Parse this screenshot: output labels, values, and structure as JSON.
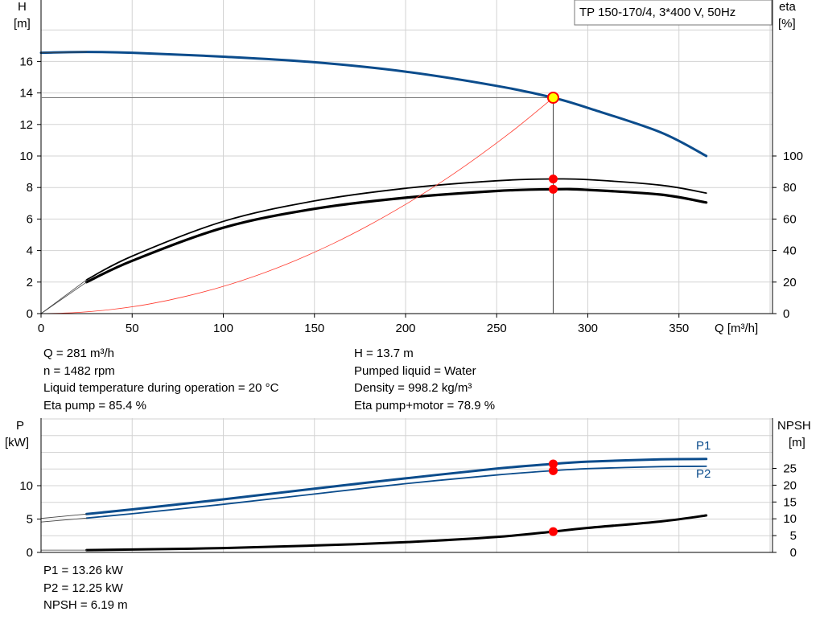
{
  "chart_data": [
    {
      "type": "line",
      "title": "TP 150-170/4, 3*400 V, 50Hz",
      "xlabel": "Q [m³/h]",
      "ylabel_left": "H",
      "ylabel_left_unit": "[m]",
      "ylabel_right": "eta",
      "ylabel_right_unit": "[%]",
      "xlim": [
        0,
        400
      ],
      "ylim_left": [
        0,
        20
      ],
      "ylim_right": [
        0,
        200
      ],
      "x_ticks": [
        0,
        50,
        100,
        150,
        200,
        250,
        300,
        350
      ],
      "y_ticks_left": [
        0,
        2,
        4,
        6,
        8,
        10,
        12,
        14,
        16
      ],
      "y_ticks_right": [
        0,
        20,
        40,
        60,
        80,
        100
      ],
      "grid": true,
      "series": [
        {
          "key": "head",
          "axis": "left",
          "color": "#0b4c8c",
          "width": 3,
          "x": [
            0,
            25,
            50,
            100,
            150,
            200,
            250,
            281,
            300,
            340,
            365
          ],
          "y": [
            16.55,
            16.6,
            16.55,
            16.3,
            15.95,
            15.35,
            14.45,
            13.7,
            13.05,
            11.5,
            10.0
          ]
        },
        {
          "key": "head-extension",
          "axis": "left",
          "color": "#444444",
          "width": 0.8,
          "x": [
            0,
            25
          ],
          "y": [
            16.55,
            16.6
          ]
        },
        {
          "key": "eta-pump",
          "axis": "right",
          "color": "#000000",
          "width": 1.8,
          "x": [
            25,
            50,
            100,
            150,
            200,
            250,
            281,
            300,
            340,
            365
          ],
          "y": [
            21.5,
            36.5,
            58.5,
            71.5,
            79.5,
            84.3,
            85.4,
            85.0,
            81.5,
            76.5
          ]
        },
        {
          "key": "eta-pump-motor",
          "axis": "right",
          "color": "#000000",
          "width": 3.2,
          "x": [
            25,
            50,
            100,
            150,
            200,
            250,
            281,
            300,
            340,
            365
          ],
          "y": [
            20.0,
            33.5,
            54.5,
            66.5,
            73.5,
            77.8,
            78.9,
            78.5,
            75.5,
            70.5
          ]
        },
        {
          "key": "eta-extension-a",
          "axis": "right",
          "color": "#444444",
          "width": 0.8,
          "x": [
            0,
            25
          ],
          "y": [
            0,
            21.5
          ]
        },
        {
          "key": "eta-extension-b",
          "axis": "right",
          "color": "#444444",
          "width": 0.8,
          "x": [
            0,
            25
          ],
          "y": [
            0,
            20.0
          ]
        },
        {
          "key": "system-curve",
          "axis": "left",
          "color": "#ff3b2f",
          "width": 0.8,
          "x": [
            0,
            20,
            40,
            60,
            80,
            100,
            120,
            140,
            160,
            180,
            200,
            220,
            240,
            260,
            281
          ],
          "y": [
            0,
            0.07,
            0.28,
            0.62,
            1.11,
            1.73,
            2.49,
            3.39,
            4.43,
            5.61,
            6.93,
            8.38,
            9.98,
            11.71,
            13.7
          ]
        }
      ],
      "operating_point": {
        "x": 281,
        "head": 13.7,
        "eta_pump": 85.4,
        "eta_pump_motor": 78.9
      }
    },
    {
      "type": "line",
      "ylabel_left": "P",
      "ylabel_left_unit": "[kW]",
      "ylabel_right": "NPSH",
      "ylabel_right_unit": "[m]",
      "xlim": [
        0,
        400
      ],
      "ylim_left": [
        0,
        15
      ],
      "ylim_right": [
        0,
        35
      ],
      "y_ticks_left": [
        0,
        5,
        10
      ],
      "y_ticks_right": [
        0,
        5,
        10,
        15,
        20,
        25
      ],
      "grid": true,
      "series": [
        {
          "key": "P1",
          "name": "P1",
          "axis": "left",
          "color": "#0b4c8c",
          "width": 3,
          "x": [
            25,
            50,
            100,
            150,
            200,
            250,
            281,
            300,
            340,
            365
          ],
          "y": [
            5.75,
            6.45,
            7.95,
            9.55,
            11.1,
            12.55,
            13.26,
            13.6,
            13.95,
            14.0
          ]
        },
        {
          "key": "P2",
          "name": "P2",
          "axis": "left",
          "color": "#0b4c8c",
          "width": 1.8,
          "x": [
            25,
            50,
            100,
            150,
            200,
            250,
            281,
            300,
            340,
            365
          ],
          "y": [
            5.15,
            5.8,
            7.2,
            8.75,
            10.3,
            11.6,
            12.25,
            12.55,
            12.85,
            12.9
          ]
        },
        {
          "key": "P1-extension",
          "axis": "left",
          "color": "#444444",
          "width": 0.8,
          "x": [
            0,
            25
          ],
          "y": [
            5.1,
            5.75
          ]
        },
        {
          "key": "P2-extension",
          "axis": "left",
          "color": "#444444",
          "width": 0.8,
          "x": [
            0,
            25
          ],
          "y": [
            4.55,
            5.15
          ]
        },
        {
          "key": "NPSH",
          "axis": "right",
          "color": "#000000",
          "width": 3,
          "x": [
            25,
            50,
            100,
            150,
            200,
            250,
            281,
            300,
            340,
            365
          ],
          "y": [
            0.7,
            0.85,
            1.3,
            2.05,
            3.05,
            4.6,
            6.19,
            7.3,
            9.2,
            11.0
          ]
        },
        {
          "key": "NPSH-extension",
          "axis": "right",
          "color": "#444444",
          "width": 0.8,
          "x": [
            0,
            25
          ],
          "y": [
            0.7,
            0.7
          ]
        }
      ],
      "operating_point": {
        "x": 281,
        "P1": 13.26,
        "P2": 12.25,
        "NPSH": 6.19
      }
    }
  ],
  "info_top": {
    "left": [
      "Q = 281 m³/h",
      "n = 1482 rpm",
      "Liquid temperature during operation = 20 °C",
      "Eta pump = 85.4 %"
    ],
    "right": [
      "H = 13.7 m",
      "Pumped liquid = Water",
      "Density = 998.2 kg/m³",
      "Eta pump+motor = 78.9 %"
    ]
  },
  "info_bottom": [
    "P1 = 13.26 kW",
    "P2 = 12.25 kW",
    "NPSH = 6.19 m"
  ],
  "colors": {
    "grid": "#d3d3d3",
    "axis": "#000000",
    "marker": "#ff0000",
    "marker_highlight": "#ffff00",
    "accent": "#0b4c8c"
  }
}
